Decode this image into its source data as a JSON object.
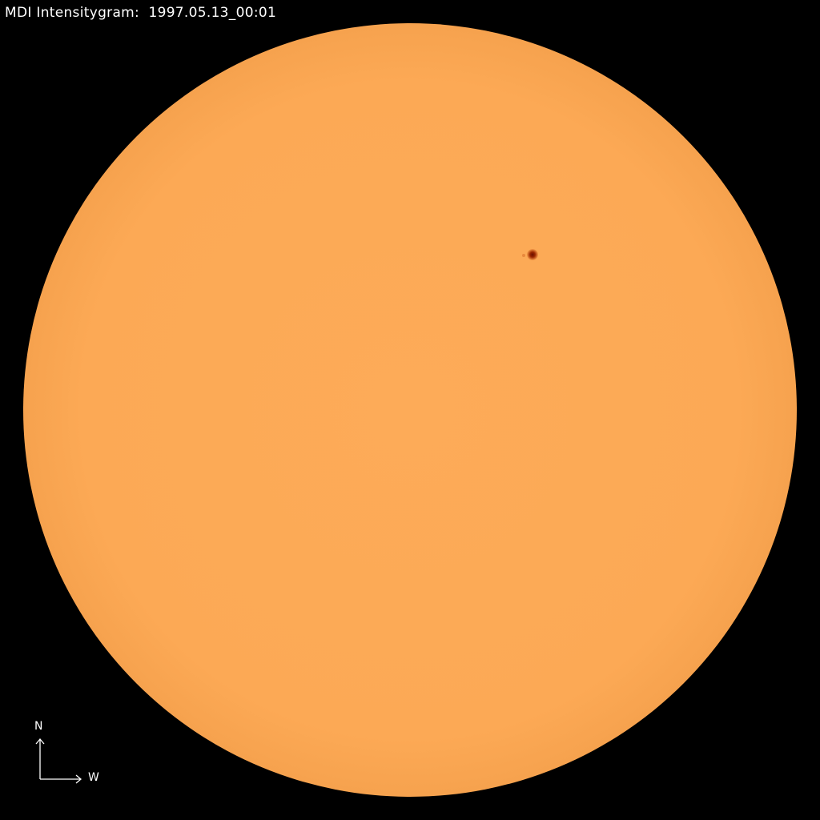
{
  "title": "MDI Intensitygram:  1997.05.13_00:01",
  "compass": {
    "north_label": "N",
    "west_label": "W"
  },
  "colors": {
    "background": "#000000",
    "disk": "#fca955",
    "disk_limb": "#f7a04c",
    "sunspot_umbra": "#8a1a00",
    "sunspot_penumbra": "#d2561a"
  }
}
